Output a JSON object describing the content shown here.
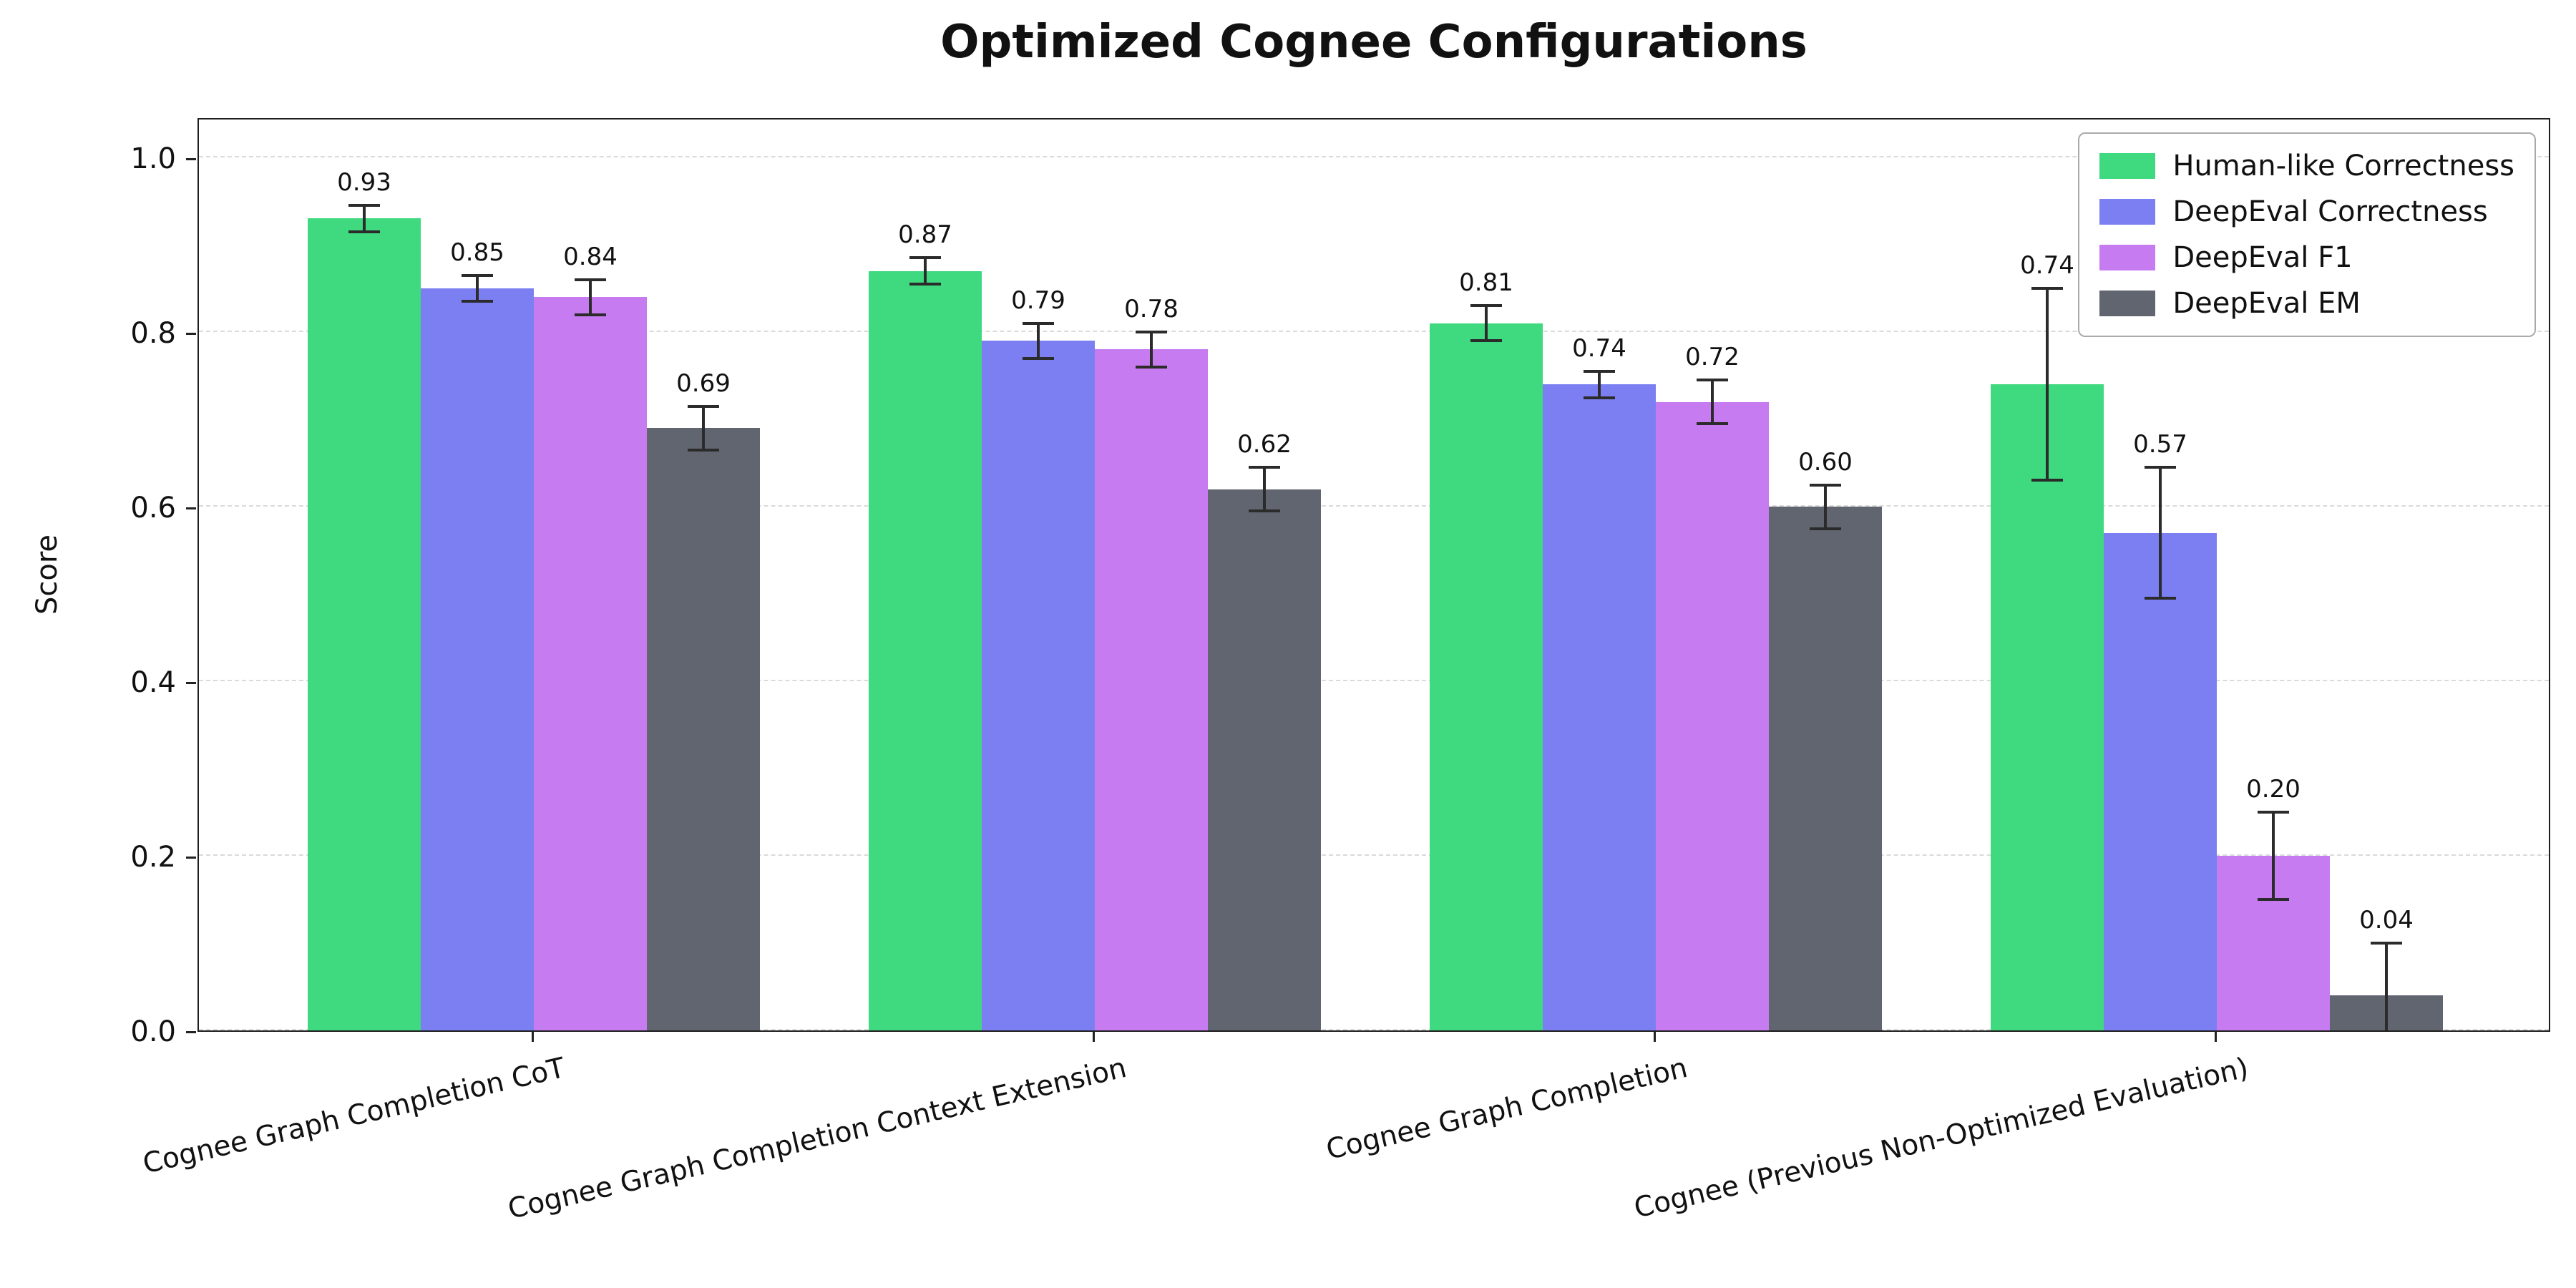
{
  "chart_data": {
    "type": "bar",
    "title": "Optimized Cognee Configurations",
    "xlabel": "",
    "ylabel": "Score",
    "ylim": [
      0,
      1.05
    ],
    "yticks": [
      0.0,
      0.2,
      0.4,
      0.6,
      0.8,
      1.0
    ],
    "grid": {
      "axis": "y",
      "style": "dashed",
      "color": "#dadada"
    },
    "legend_position": "upper right",
    "error_bar_color": "#2b2b2b",
    "categories": [
      "Cognee Graph Completion CoT",
      "Cognee Graph Completion Context Extension",
      "Cognee Graph Completion",
      "Cognee (Previous Non-Optimized Evaluation)"
    ],
    "series": [
      {
        "name": "Human-like Correctness",
        "color": "#3fd97f",
        "values": [
          0.93,
          0.87,
          0.81,
          0.74
        ],
        "errors": [
          0.015,
          0.015,
          0.02,
          0.11
        ]
      },
      {
        "name": "DeepEval Correctness",
        "color": "#7b7ff2",
        "values": [
          0.85,
          0.79,
          0.74,
          0.57
        ],
        "errors": [
          0.015,
          0.02,
          0.015,
          0.075
        ]
      },
      {
        "name": "DeepEval F1",
        "color": "#c67bf0",
        "values": [
          0.84,
          0.78,
          0.72,
          0.2
        ],
        "errors": [
          0.02,
          0.02,
          0.025,
          0.05
        ]
      },
      {
        "name": "DeepEval EM",
        "color": "#616570",
        "values": [
          0.69,
          0.62,
          0.6,
          0.04
        ],
        "errors": [
          0.025,
          0.025,
          0.025,
          0.06
        ]
      }
    ]
  }
}
